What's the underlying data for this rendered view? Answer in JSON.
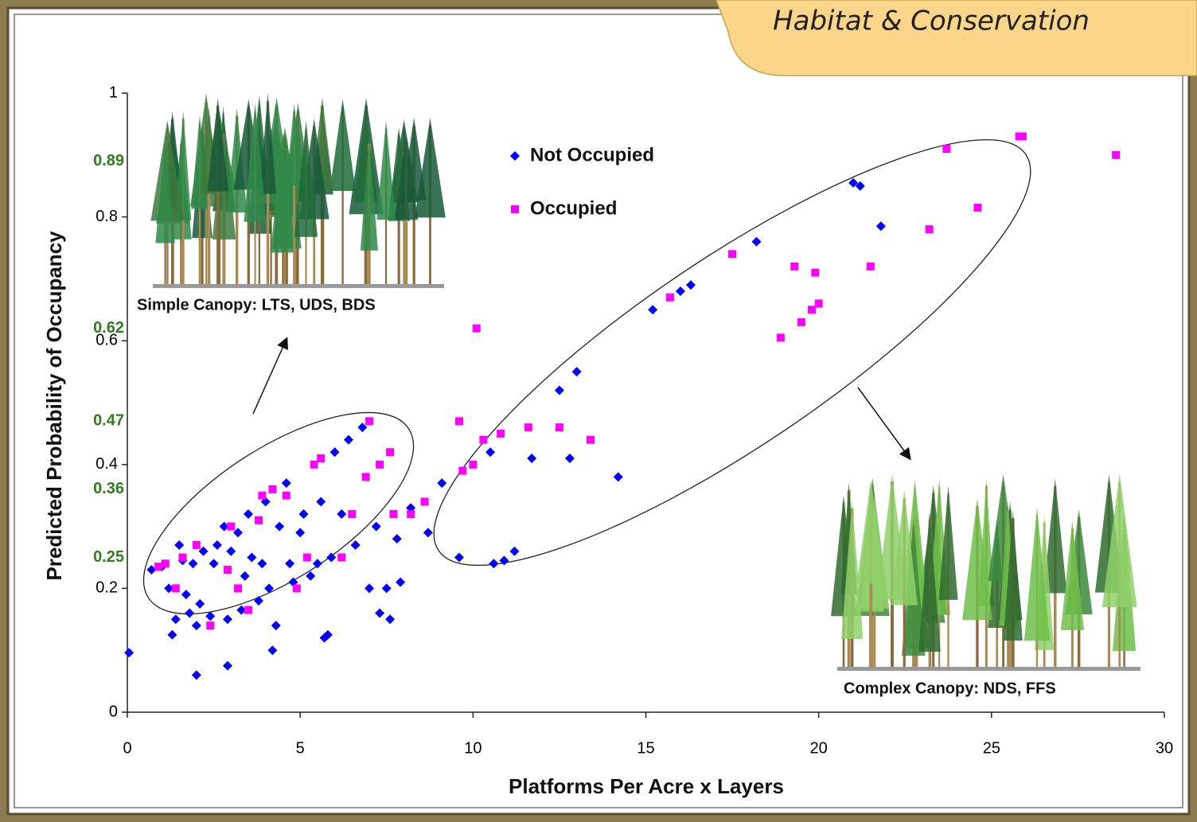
{
  "header": {
    "tab": "Habitat & Conservation"
  },
  "chart_data": {
    "type": "scatter",
    "xlabel": "Platforms Per Acre x Layers",
    "ylabel": "Predicted Probability of Occupancy",
    "xlim": [
      0,
      30
    ],
    "ylim": [
      0,
      1
    ],
    "xticks": [
      0,
      5,
      10,
      15,
      20,
      25,
      30
    ],
    "yticks": [
      0,
      0.2,
      0.4,
      0.6,
      0.8,
      1
    ],
    "annotation_ticks": [
      0.25,
      0.36,
      0.47,
      0.62,
      0.89
    ],
    "annotation_tick_color": "#2e7d1e",
    "annotations": [
      "Simple Canopy: LTS, UDS, BDS",
      "Complex Canopy: NDS, FFS"
    ],
    "legend": "top-center",
    "series": [
      {
        "name": "Not Occupied",
        "color": "#0000ff",
        "marker": "diamond",
        "x": [
          0.05,
          0.7,
          1.0,
          1.2,
          1.3,
          1.4,
          1.5,
          1.6,
          1.7,
          1.8,
          1.9,
          2.0,
          2.0,
          2.1,
          2.2,
          2.4,
          2.5,
          2.6,
          2.8,
          2.9,
          2.9,
          3.0,
          3.2,
          3.3,
          3.4,
          3.5,
          3.6,
          3.8,
          3.9,
          4.0,
          4.1,
          4.2,
          4.3,
          4.4,
          4.6,
          4.7,
          4.8,
          5.0,
          5.1,
          5.3,
          5.5,
          5.6,
          5.7,
          5.8,
          5.9,
          6.0,
          6.2,
          6.4,
          6.6,
          6.8,
          7.0,
          7.2,
          7.3,
          7.5,
          7.6,
          7.8,
          7.9,
          8.2,
          8.7,
          9.1,
          9.6,
          10.5,
          10.6,
          10.9,
          11.2,
          11.7,
          12.5,
          12.8,
          13.0,
          14.2,
          15.2,
          16.0,
          16.3,
          18.2,
          21.0,
          21.2,
          21.8
        ],
        "values": [
          0.096,
          0.23,
          0.235,
          0.2,
          0.125,
          0.15,
          0.27,
          0.245,
          0.19,
          0.16,
          0.24,
          0.06,
          0.14,
          0.175,
          0.26,
          0.155,
          0.24,
          0.27,
          0.3,
          0.15,
          0.075,
          0.26,
          0.29,
          0.165,
          0.22,
          0.32,
          0.25,
          0.18,
          0.24,
          0.34,
          0.2,
          0.1,
          0.14,
          0.3,
          0.37,
          0.24,
          0.21,
          0.29,
          0.32,
          0.22,
          0.24,
          0.34,
          0.12,
          0.125,
          0.25,
          0.42,
          0.32,
          0.44,
          0.27,
          0.46,
          0.2,
          0.3,
          0.16,
          0.2,
          0.15,
          0.28,
          0.21,
          0.33,
          0.29,
          0.37,
          0.25,
          0.42,
          0.24,
          0.245,
          0.26,
          0.41,
          0.52,
          0.41,
          0.55,
          0.38,
          0.65,
          0.68,
          0.69,
          0.76,
          0.855,
          0.85,
          0.785
        ]
      },
      {
        "name": "Occupied",
        "color": "#ff00ff",
        "marker": "square",
        "x": [
          0.9,
          1.1,
          1.4,
          1.6,
          2.0,
          2.4,
          2.9,
          3.0,
          3.2,
          3.5,
          3.8,
          3.9,
          4.2,
          4.6,
          4.9,
          5.2,
          5.4,
          5.6,
          6.2,
          6.5,
          6.9,
          7.0,
          7.3,
          7.6,
          7.7,
          8.2,
          8.6,
          9.6,
          9.7,
          10.0,
          10.1,
          10.3,
          10.8,
          11.6,
          12.5,
          13.4,
          15.7,
          17.5,
          18.9,
          19.3,
          19.5,
          19.8,
          20.0,
          19.9,
          21.5,
          23.2,
          23.7,
          24.6,
          25.8,
          25.9,
          28.6
        ],
        "values": [
          0.235,
          0.24,
          0.2,
          0.25,
          0.27,
          0.14,
          0.23,
          0.3,
          0.2,
          0.165,
          0.31,
          0.35,
          0.36,
          0.35,
          0.2,
          0.25,
          0.4,
          0.41,
          0.25,
          0.32,
          0.38,
          0.47,
          0.4,
          0.42,
          0.32,
          0.32,
          0.34,
          0.47,
          0.39,
          0.4,
          0.62,
          0.44,
          0.45,
          0.46,
          0.46,
          0.44,
          0.67,
          0.74,
          0.605,
          0.72,
          0.63,
          0.65,
          0.66,
          0.71,
          0.72,
          0.78,
          0.91,
          0.815,
          0.93,
          0.93,
          0.9
        ]
      }
    ]
  }
}
